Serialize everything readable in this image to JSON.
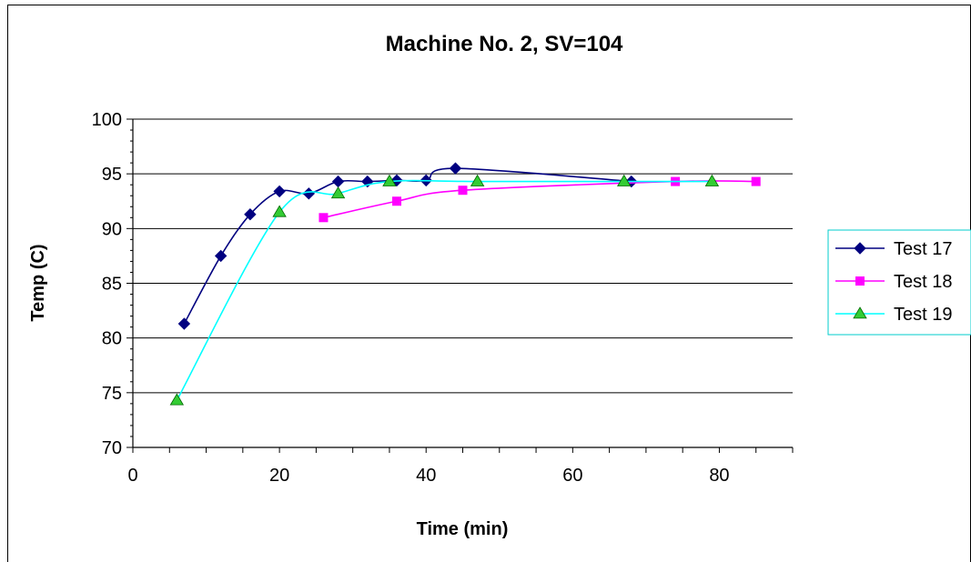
{
  "chart_data": {
    "type": "line",
    "title": "Machine No. 2,  SV=104",
    "xlabel": "Time (min)",
    "ylabel": "Temp (C)",
    "xlim": [
      0,
      90
    ],
    "ylim": [
      70,
      100
    ],
    "x_ticks": [
      0,
      20,
      40,
      60,
      80
    ],
    "y_ticks": [
      70,
      75,
      80,
      85,
      90,
      95,
      100
    ],
    "grid": "horizontal",
    "legend_position": "right",
    "series": [
      {
        "name": "Test 17",
        "color": "#000080",
        "marker": "diamond",
        "x": [
          7,
          12,
          16,
          20,
          24,
          28,
          32,
          36,
          40,
          44,
          68
        ],
        "y": [
          81.3,
          87.5,
          91.3,
          93.4,
          93.2,
          94.3,
          94.3,
          94.4,
          94.4,
          95.5,
          94.3
        ]
      },
      {
        "name": "Test 18",
        "color": "#FF00FF",
        "marker": "square",
        "x": [
          26,
          36,
          45,
          74,
          85
        ],
        "y": [
          91.0,
          92.5,
          93.5,
          94.3,
          94.3
        ]
      },
      {
        "name": "Test 19",
        "color": "#00FFFF",
        "marker": "triangle",
        "marker_fill": "#33CC33",
        "x": [
          6,
          20,
          28,
          35,
          47,
          67,
          79
        ],
        "y": [
          74.3,
          91.5,
          93.2,
          94.3,
          94.3,
          94.3,
          94.3
        ]
      }
    ]
  }
}
